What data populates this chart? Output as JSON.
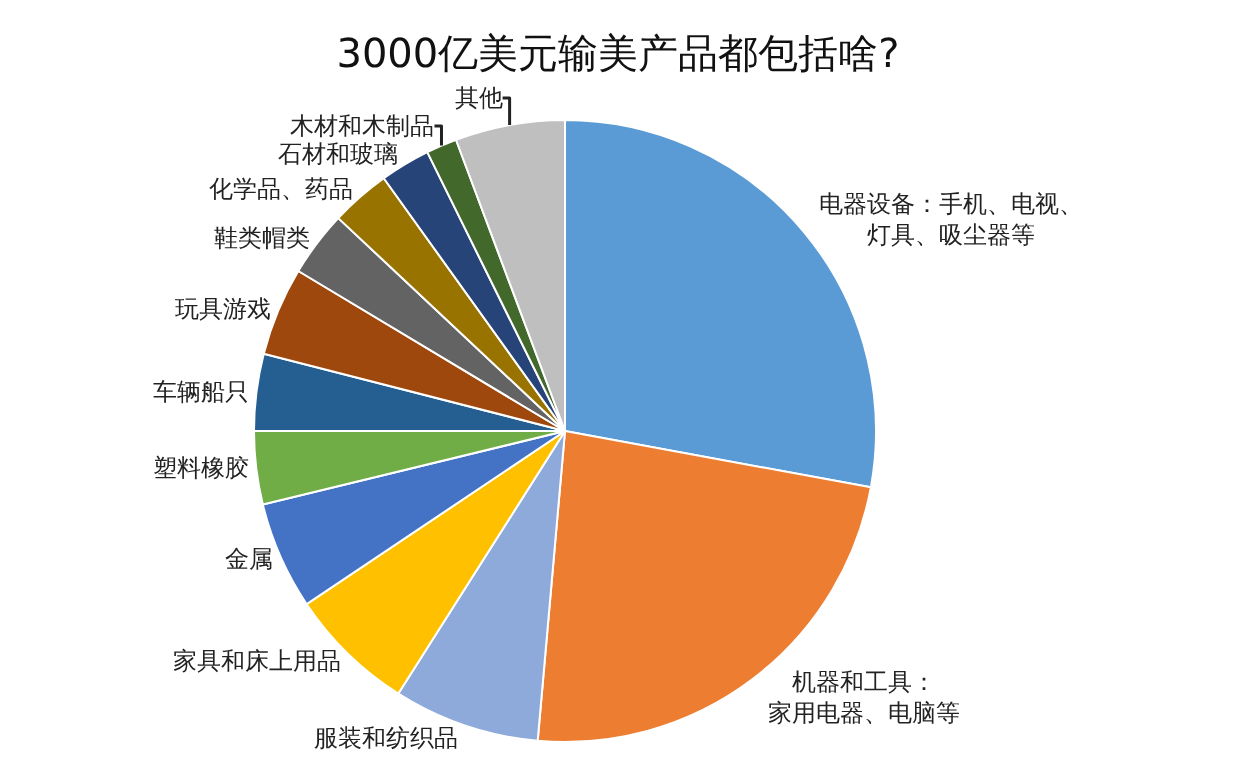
{
  "chart_data": {
    "type": "pie",
    "title": "3000亿美元输美产品都包括啥?",
    "categories": [
      "电器设备：手机、电视、灯具、吸尘器等",
      "机器和工具：家用电器、电脑等",
      "服装和纺织品",
      "家具和床上用品",
      "金属",
      "塑料橡胶",
      "车辆船只",
      "玩具游戏",
      "鞋类帽类",
      "化学品、药品",
      "石材和玻璃",
      "木材和木制品",
      "其他"
    ],
    "values": [
      27.9,
      23.5,
      7.6,
      6.6,
      5.6,
      3.8,
      4.0,
      4.6,
      3.4,
      3.1,
      2.6,
      1.6,
      5.7
    ],
    "colors": [
      "#5b9bd5",
      "#ed7d31",
      "#8eaadb",
      "#ffc000",
      "#4472c4",
      "#70ad47",
      "#255e91",
      "#9e480e",
      "#636363",
      "#997300",
      "#264478",
      "#43682b",
      "#bfbfbf"
    ],
    "legend": false
  }
}
